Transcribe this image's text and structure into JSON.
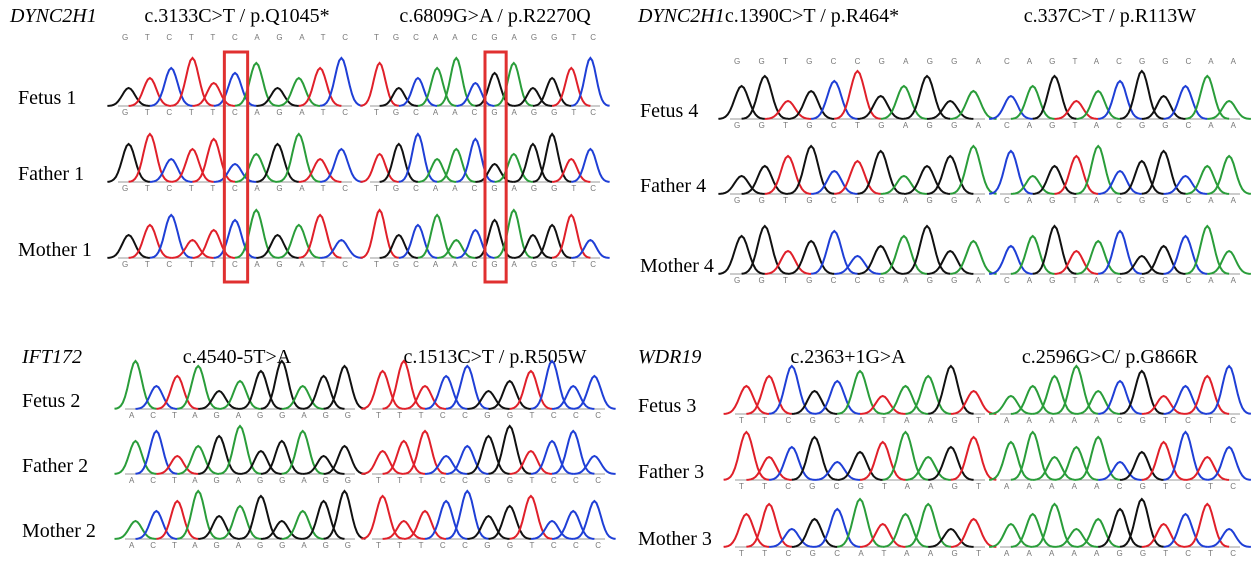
{
  "panels": [
    {
      "gene": "DYNC2H1",
      "variants": [
        "c.3133C>T / p.Q1045*",
        "c.6809G>A / p.R2270Q"
      ],
      "reference": [
        "GTCTTCAGATC",
        "TGCAACGAGGTC"
      ],
      "samples": [
        "Fetus 1",
        "Father 1",
        "Mother 1"
      ],
      "tracks": [
        [
          "GTCTTCAGATC",
          "GTCTTCAGATC",
          "GTCTTCAGATC"
        ],
        [
          "TGCAACGAGGTC",
          "TGCAACGAGGTC",
          "TGCAACGAGGTC"
        ]
      ]
    },
    {
      "gene": "DYNC2H1",
      "variants": [
        "c.1390C>T / p.R464*",
        "c.337C>T / p.R113W"
      ],
      "reference": [
        "GGTGCCGAGGA",
        "CAGTACGGCAA"
      ],
      "samples": [
        "Fetus 4",
        "Father 4",
        "Mother 4"
      ],
      "tracks": [
        [
          "GGTGCTGAGGA",
          "GGTGCTGAGGA",
          "GGTGCCGAGGA"
        ],
        [
          "CAGTACGGCAA",
          "CAGTACGGCAA",
          "CAGTACGGCAA"
        ]
      ]
    },
    {
      "gene": "IFT172",
      "variants": [
        "c.4540-5T>A",
        "c.1513C>T / p.R505W"
      ],
      "samples": [
        "Fetus 2",
        "Father 2",
        "Mother 2"
      ],
      "tracks": [
        [
          "ACTAGAGGAGG",
          "ACTAGAGGAGG",
          "ACTAGAGGAGG"
        ],
        [
          "TTTCCGGTCCC",
          "TTTCCGGTCCC",
          "TTTCCGGTCCC"
        ]
      ]
    },
    {
      "gene": "WDR19",
      "variants": [
        "c.2363+1G>A",
        "c.2596G>C/ p.G866R"
      ],
      "samples": [
        "Fetus 3",
        "Father 3",
        "Mother 3"
      ],
      "tracks": [
        [
          "TTCGCATAAGT",
          "TTCGCGTAAGT",
          "TTCGCATAAGT"
        ],
        [
          "AAAAACGTCTC",
          "AAAAACGTCTC",
          "AAAAAGGTCTC"
        ]
      ]
    }
  ]
}
